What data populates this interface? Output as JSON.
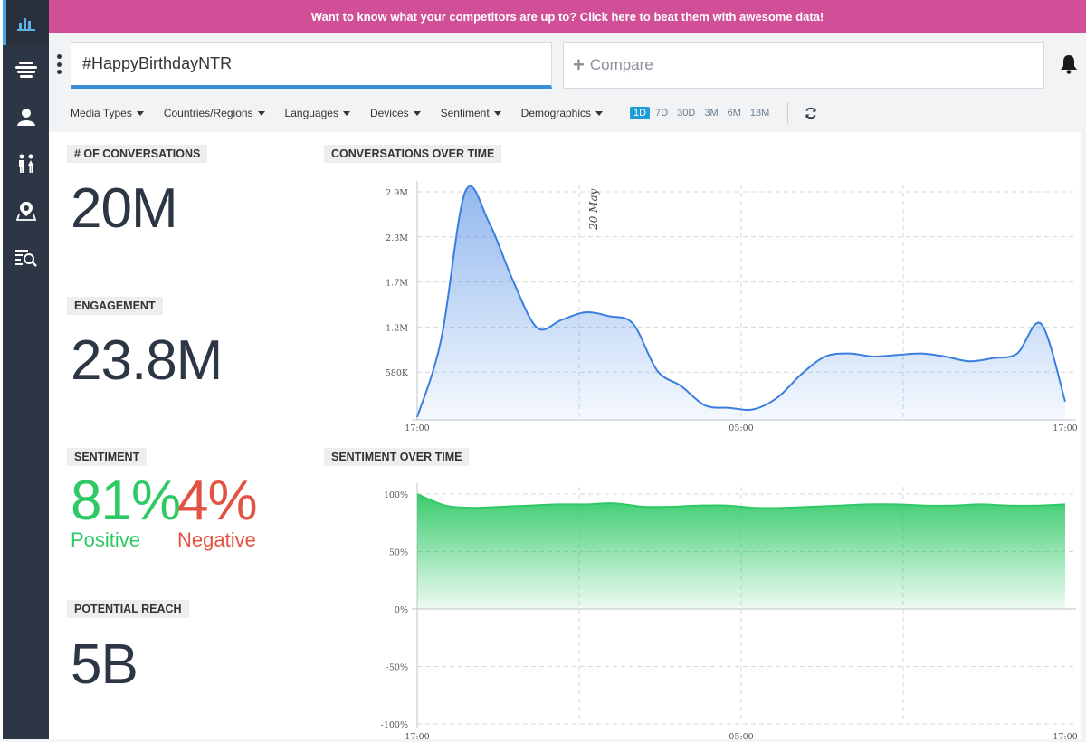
{
  "banner": {
    "text": "Want to know what your competitors are up to? Click here to beat them with awesome data!"
  },
  "sidebar": {
    "items": [
      {
        "icon": "bar-chart-icon",
        "active": true
      },
      {
        "icon": "stream-icon",
        "active": false
      },
      {
        "icon": "user-icon",
        "active": false
      },
      {
        "icon": "people-icon",
        "active": false
      },
      {
        "icon": "map-pin-icon",
        "active": false
      },
      {
        "icon": "list-search-icon",
        "active": false
      }
    ]
  },
  "search": {
    "value": "#HappyBirthdayNTR"
  },
  "compare": {
    "placeholder": "Compare"
  },
  "filters": [
    "Media Types",
    "Countries/Regions",
    "Languages",
    "Devices",
    "Sentiment",
    "Demographics"
  ],
  "ranges": {
    "options": [
      "1D",
      "7D",
      "30D",
      "3M",
      "6M",
      "13M"
    ],
    "selected": "1D"
  },
  "stats": {
    "conversations": {
      "label": "# OF CONVERSATIONS",
      "value": "20M"
    },
    "engagement": {
      "label": "ENGAGEMENT",
      "value": "23.8M"
    },
    "sentiment": {
      "label": "SENTIMENT",
      "positive_value": "81%",
      "positive_label": "Positive",
      "negative_value": "4%",
      "negative_label": "Negative"
    },
    "reach": {
      "label": "POTENTIAL REACH",
      "value": "5B"
    }
  },
  "colors": {
    "accent": "#1f9bd7",
    "positive": "#2ec965",
    "negative": "#e35343",
    "banner": "#d04f97",
    "sidebar": "#2c3644"
  },
  "chart_data": [
    {
      "type": "area",
      "title": "CONVERSATIONS OVER TIME",
      "xlabel": "",
      "ylabel": "",
      "x_ticks": [
        "17:00",
        "05:00",
        "17:00"
      ],
      "y_ticks": [
        "580K",
        "1.2M",
        "1.7M",
        "2.3M",
        "2.9M"
      ],
      "ylim": [
        0,
        2900000
      ],
      "annotation": "20 May",
      "color": "#3a7fe0",
      "values": [
        0,
        1000000,
        2900000,
        2500000,
        1750000,
        1150000,
        1250000,
        1350000,
        1300000,
        1200000,
        600000,
        400000,
        150000,
        120000,
        100000,
        250000,
        550000,
        780000,
        820000,
        780000,
        800000,
        820000,
        780000,
        720000,
        760000,
        820000,
        1200000,
        200000
      ]
    },
    {
      "type": "area",
      "title": "SENTIMENT OVER TIME",
      "xlabel": "",
      "ylabel": "",
      "x_ticks": [
        "17:00",
        "05:00",
        "17:00"
      ],
      "y_ticks": [
        "100%",
        "50%",
        "0%",
        "-50%",
        "-100%"
      ],
      "ylim": [
        -100,
        100
      ],
      "color": "#2ec965",
      "values": [
        100,
        90,
        88,
        89,
        90,
        91,
        91,
        92,
        89,
        89,
        90,
        90,
        88,
        88,
        89,
        90,
        91,
        91,
        90,
        90,
        91,
        90,
        90,
        91
      ]
    }
  ]
}
